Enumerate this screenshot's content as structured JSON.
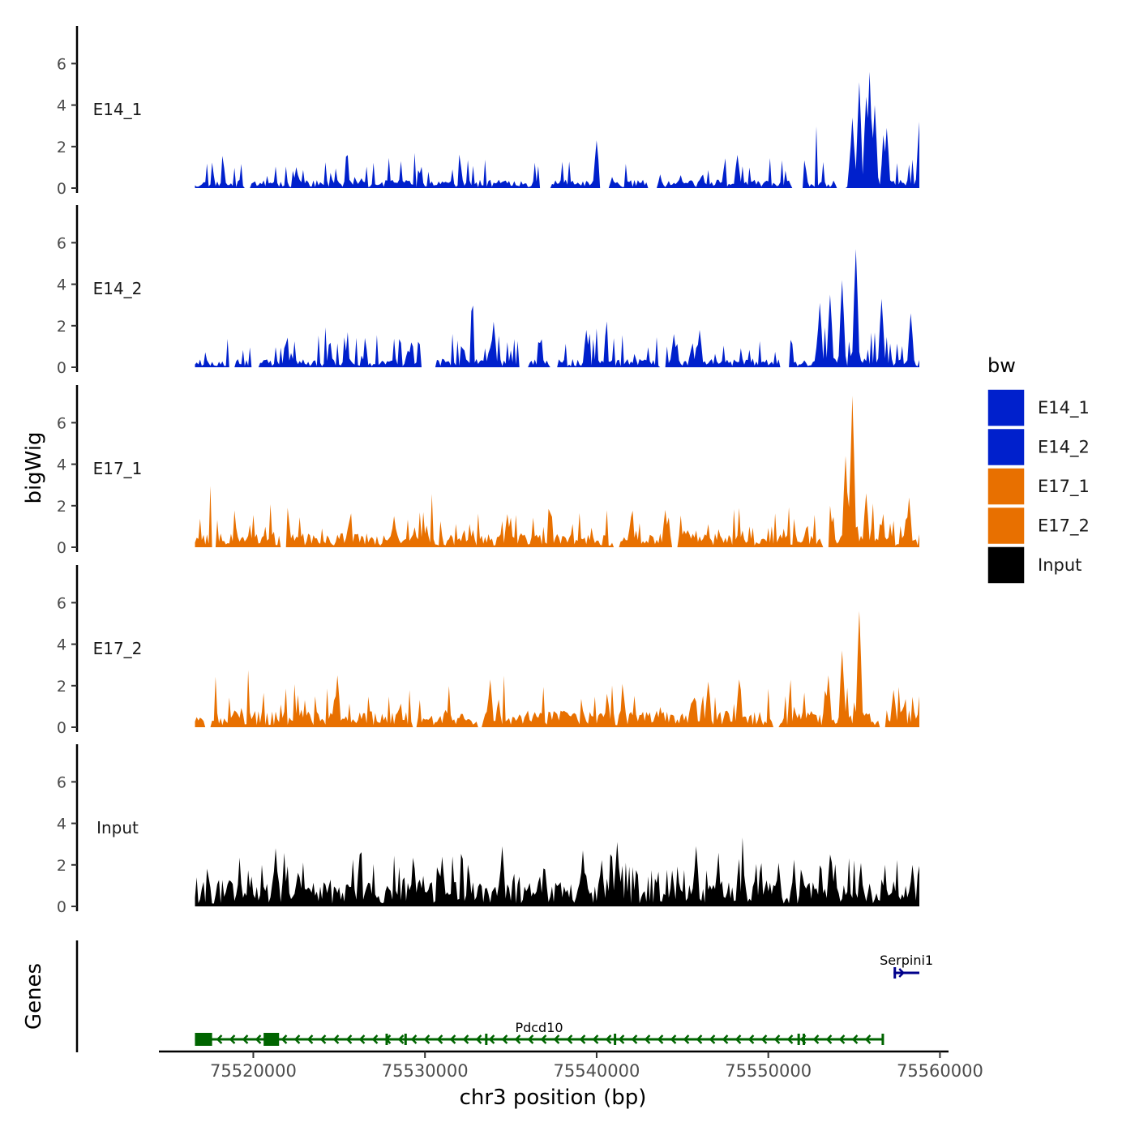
{
  "chart_data": {
    "type": "area",
    "title": "",
    "ylabel": "bigWig",
    "genes_label": "Genes",
    "xlabel": "chr3 position (bp)",
    "chromosome": "chr3",
    "xlim": [
      75514500,
      75560500
    ],
    "ylim": [
      0,
      7.8
    ],
    "y_ticks": [
      "0",
      "2",
      "4",
      "6"
    ],
    "x_ticks": [
      {
        "value": 75520000,
        "label": "75520000"
      },
      {
        "value": 75530000,
        "label": "75530000"
      },
      {
        "value": 75540000,
        "label": "75540000"
      },
      {
        "value": 75550000,
        "label": "75550000"
      },
      {
        "value": 75560000,
        "label": "75560000"
      }
    ],
    "region": {
      "start": 75516600,
      "end": 75558800
    },
    "tracks": [
      {
        "name": "E14_1",
        "color": "#0020CC",
        "base": 0.3,
        "noise": 0.9,
        "seed": 11,
        "gaps": [
          [
            75519500,
            75519800
          ],
          [
            75536700,
            75537300
          ],
          [
            75540200,
            75540700
          ],
          [
            75543000,
            75543500
          ],
          [
            75551400,
            75552000
          ],
          [
            75554000,
            75554500
          ]
        ],
        "peaks": [
          [
            75540000,
            2.3
          ],
          [
            75548200,
            1.6
          ],
          [
            75554900,
            3.4
          ],
          [
            75555300,
            5.1
          ],
          [
            75555700,
            4.4
          ],
          [
            75555900,
            5.6
          ],
          [
            75556200,
            4.0
          ],
          [
            75556900,
            2.9
          ],
          [
            75558800,
            3.2
          ]
        ]
      },
      {
        "name": "E14_2",
        "color": "#0020CC",
        "base": 0.3,
        "noise": 1.0,
        "seed": 23,
        "gaps": [
          [
            75518600,
            75518900
          ],
          [
            75519900,
            75520300
          ],
          [
            75529800,
            75530600
          ],
          [
            75535500,
            75536000
          ],
          [
            75537300,
            75537700
          ],
          [
            75543700,
            75544000
          ],
          [
            75550700,
            75551200
          ]
        ],
        "peaks": [
          [
            75529200,
            1.2
          ],
          [
            75534000,
            2.2
          ],
          [
            75539400,
            1.8
          ],
          [
            75544500,
            1.6
          ],
          [
            75546000,
            1.8
          ],
          [
            75553000,
            3.1
          ],
          [
            75553600,
            3.5
          ],
          [
            75554300,
            4.2
          ],
          [
            75555100,
            5.7
          ],
          [
            75556600,
            3.3
          ],
          [
            75558300,
            2.6
          ]
        ]
      },
      {
        "name": "E17_1",
        "color": "#E87000",
        "base": 0.5,
        "noise": 0.9,
        "seed": 37,
        "gaps": [
          [
            75517600,
            75517800
          ],
          [
            75521600,
            75521900
          ],
          [
            75541000,
            75541300
          ],
          [
            75544400,
            75544700
          ],
          [
            75553200,
            75553500
          ]
        ],
        "peaks": [
          [
            75522000,
            1.9
          ],
          [
            75528200,
            1.5
          ],
          [
            75534800,
            1.6
          ],
          [
            75544000,
            1.8
          ],
          [
            75553600,
            2.0
          ],
          [
            75554500,
            4.4
          ],
          [
            75554900,
            7.3
          ],
          [
            75555700,
            2.6
          ],
          [
            75558200,
            2.4
          ]
        ]
      },
      {
        "name": "E17_2",
        "color": "#E87000",
        "base": 0.6,
        "noise": 0.9,
        "seed": 51,
        "gaps": [
          [
            75517200,
            75517500
          ],
          [
            75529300,
            75529500
          ],
          [
            75533100,
            75533300
          ],
          [
            75550300,
            75550600
          ],
          [
            75556500,
            75556800
          ]
        ],
        "peaks": [
          [
            75524900,
            2.5
          ],
          [
            75533800,
            2.3
          ],
          [
            75546500,
            2.2
          ],
          [
            75548300,
            2.3
          ],
          [
            75553500,
            2.5
          ],
          [
            75554300,
            3.7
          ],
          [
            75555300,
            5.6
          ],
          [
            75557300,
            1.8
          ]
        ]
      },
      {
        "name": "Input",
        "color": "#000000",
        "base": 0.9,
        "noise": 1.1,
        "seed": 67,
        "gaps": [],
        "peaks": [
          [
            75521300,
            2.8
          ],
          [
            75526200,
            2.5
          ],
          [
            75531000,
            2.4
          ],
          [
            75534500,
            2.9
          ],
          [
            75539200,
            2.7
          ],
          [
            75541200,
            3.1
          ],
          [
            75545800,
            2.9
          ],
          [
            75550600,
            2.1
          ],
          [
            75553600,
            2.5
          ],
          [
            75558400,
            2.0
          ]
        ]
      }
    ],
    "legend": {
      "title": "bw",
      "entries": [
        {
          "label": "E14_1",
          "color": "#0020CC"
        },
        {
          "label": "E14_2",
          "color": "#0020CC"
        },
        {
          "label": "E17_1",
          "color": "#E87000"
        },
        {
          "label": "E17_2",
          "color": "#E87000"
        },
        {
          "label": "Input",
          "color": "#000000"
        }
      ]
    },
    "genes": [
      {
        "name": "Pdcd10",
        "color": "#006400",
        "strand": "-",
        "start": 75516600,
        "end": 75556700,
        "row": 2,
        "exons": [
          [
            75516600,
            75517600
          ],
          [
            75520600,
            75521500
          ],
          [
            75527700,
            75527800
          ],
          [
            75528800,
            75528900
          ],
          [
            75533500,
            75533600
          ],
          [
            75541000,
            75541100
          ],
          [
            75551700,
            75551800
          ],
          [
            75552000,
            75552100
          ],
          [
            75556600,
            75556700
          ]
        ]
      },
      {
        "name": "Serpini1",
        "color": "#00008B",
        "strand": "+",
        "start": 75557300,
        "end": 75558800,
        "row": 1,
        "exons": [
          [
            75557300,
            75557400
          ]
        ]
      }
    ]
  }
}
